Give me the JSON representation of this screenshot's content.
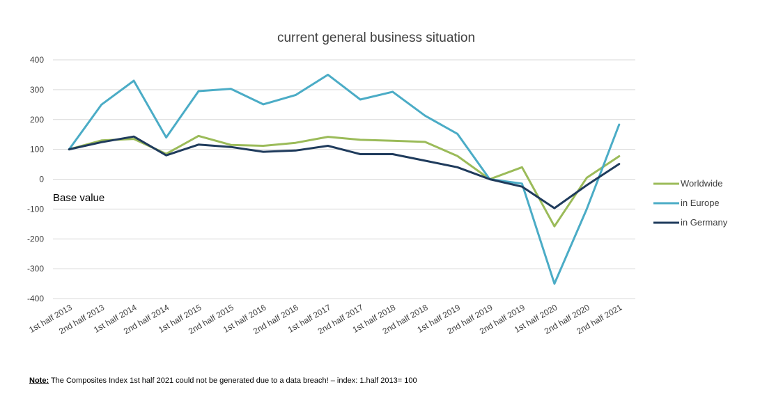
{
  "chart_data": {
    "type": "line",
    "title": "current general business situation",
    "xlabel": "",
    "ylabel": "",
    "ylim": [
      -400,
      400
    ],
    "yticks": [
      400,
      300,
      200,
      100,
      0,
      -100,
      -200,
      -300,
      -400
    ],
    "grid": true,
    "legend_position": "right",
    "categories": [
      "1st half 2013",
      "2nd half 2013",
      "1st half 2014",
      "2nd half 2014",
      "1st half 2015",
      "2nd half 2015",
      "1st half 2016",
      "2nd half 2016",
      "1st half 2017",
      "2nd half 2017",
      "1st half 2018",
      "2nd half 2018",
      "1st half 2019",
      "2nd half 2019",
      "2nd half 2019",
      "1st half 2020",
      "2nd half 2020",
      "2nd half 2021"
    ],
    "series": [
      {
        "name": "Worldwide",
        "color": "#9bbb59",
        "values": [
          100,
          130,
          135,
          85,
          145,
          115,
          112,
          122,
          142,
          132,
          129,
          125,
          78,
          0,
          40,
          -158,
          5,
          77
        ]
      },
      {
        "name": "in Europe",
        "color": "#4bacc6",
        "values": [
          100,
          250,
          330,
          140,
          295,
          303,
          251,
          282,
          350,
          267,
          293,
          213,
          152,
          0,
          -15,
          -350,
          -100,
          183
        ]
      },
      {
        "name": "in Germany",
        "color": "#1f3b5c",
        "values": [
          100,
          124,
          143,
          80,
          116,
          108,
          92,
          96,
          112,
          84,
          84,
          62,
          40,
          0,
          -25,
          -97,
          -20,
          51
        ]
      }
    ],
    "annotations": [
      "Base value"
    ]
  },
  "note": {
    "label": "Note:",
    "text": " The Composites Index 1st half  2021 could not be generated due to a data breach! – index: 1.half 2013= 100"
  }
}
